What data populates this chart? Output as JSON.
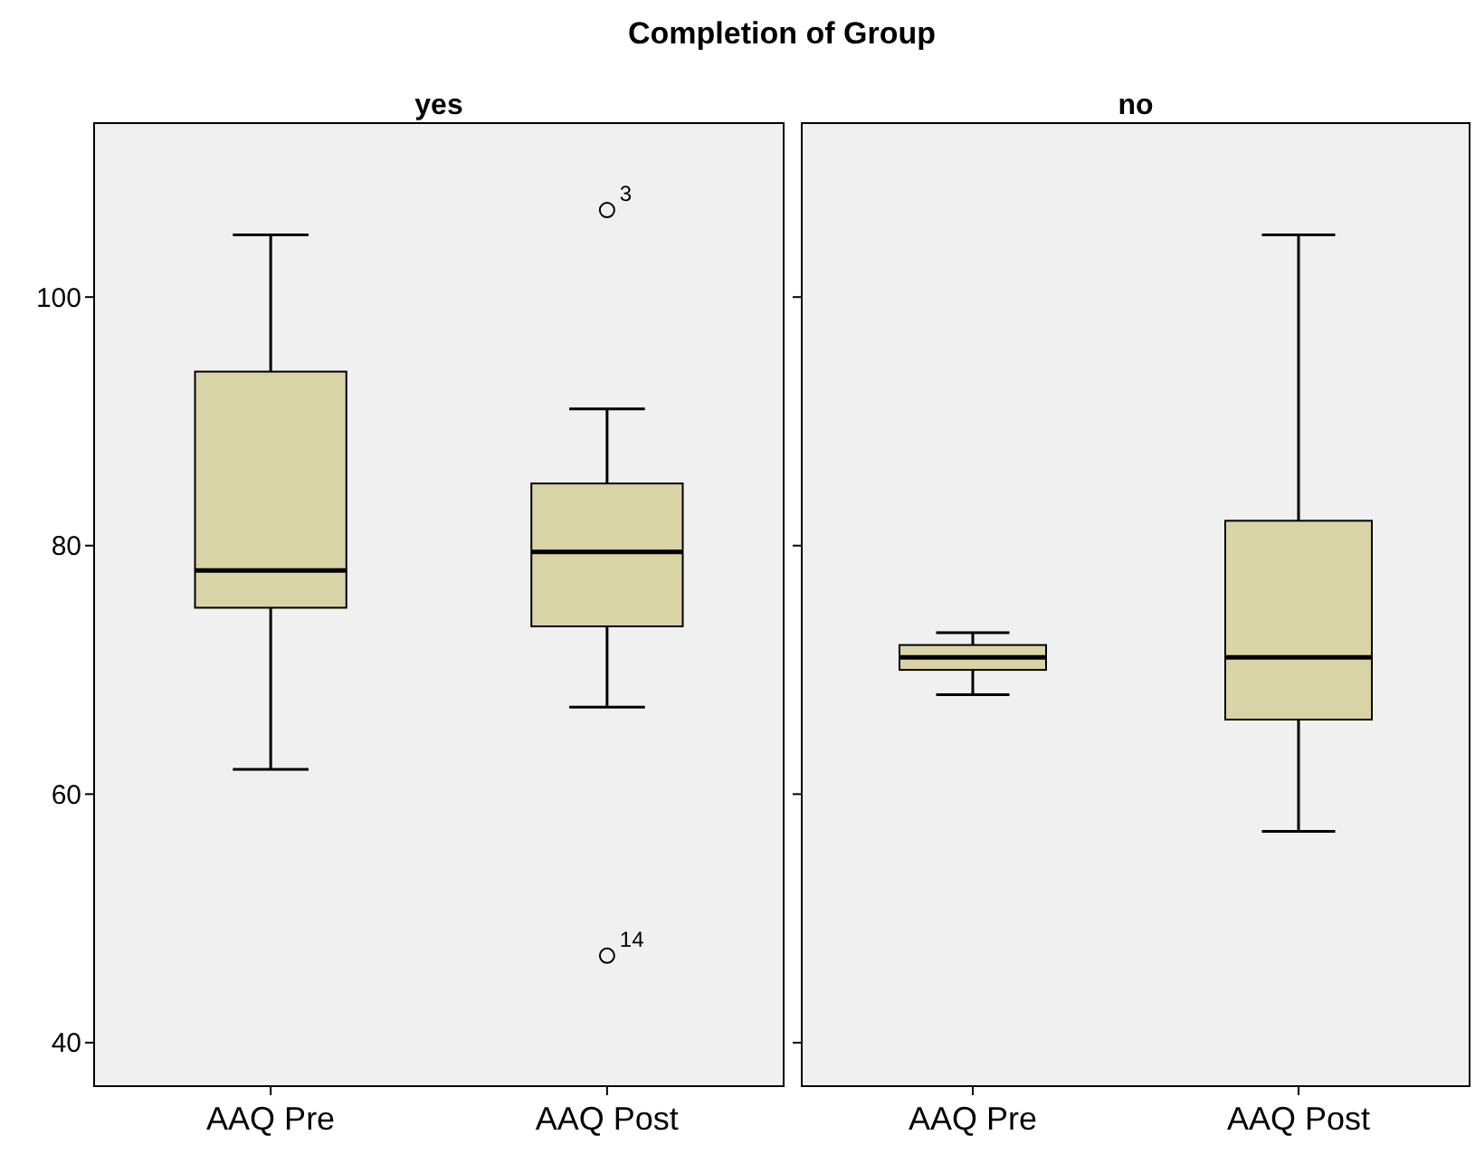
{
  "chart_data": [
    {
      "type": "box",
      "title": "Completion of Group",
      "subtitle": "yes",
      "categories": [
        "AAQ Pre",
        "AAQ Post"
      ],
      "color": "#d9d4a6",
      "ylim": [
        36.5,
        114
      ],
      "yticks": [
        40,
        60,
        80,
        100
      ],
      "grid": false,
      "tick_labels": true,
      "boxes": [
        {
          "low": 62,
          "q1": 75,
          "median": 78,
          "q3": 94,
          "high": 105
        },
        {
          "low": 67,
          "q1": 73.5,
          "median": 79.5,
          "q3": 85,
          "high": 91,
          "outliers": [
            107,
            47
          ]
        }
      ],
      "annotations": [
        "3",
        "14"
      ]
    },
    {
      "type": "box",
      "subtitle": "no",
      "categories": [
        "AAQ Pre",
        "AAQ Post"
      ],
      "color": "#d9d4a6",
      "ylim": [
        36.5,
        114
      ],
      "yticks": [
        40,
        60,
        80,
        100
      ],
      "grid": false,
      "tick_labels": "x",
      "boxes": [
        {
          "low": 68,
          "q1": 70,
          "median": 71,
          "q3": 72,
          "high": 73
        },
        {
          "low": 57,
          "q1": 66,
          "median": 71,
          "q3": 82,
          "high": 105
        }
      ]
    }
  ]
}
